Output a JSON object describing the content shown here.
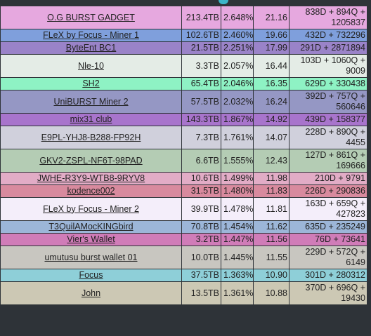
{
  "rows": [
    {
      "name": "O.G BURST GADGET",
      "capacity": "213.4TB",
      "percent": "2.648%",
      "share": "21.16",
      "deadlines": "838D + 894Q + 1205837",
      "bg": "#e6a8df",
      "tall": true
    },
    {
      "name": "FLeX by Focus - Miner 1",
      "capacity": "102.6TB",
      "percent": "2.460%",
      "share": "19.66",
      "deadlines": "432D + 732296",
      "bg": "#7f9fdc",
      "tall": false
    },
    {
      "name": "ByteEnt BC1",
      "capacity": "21.5TB",
      "percent": "2.251%",
      "share": "17.99",
      "deadlines": "291D + 2871894",
      "bg": "#9a83c8",
      "tall": false
    },
    {
      "name": "Nle-10",
      "capacity": "3.3TB",
      "percent": "2.057%",
      "share": "16.44",
      "deadlines": "103D + 1060Q + 9009",
      "bg": "#e4ece6",
      "tall": true
    },
    {
      "name": "SH2",
      "capacity": "65.4TB",
      "percent": "2.046%",
      "share": "16.35",
      "deadlines": "629D + 330438",
      "bg": "#8ef2c4",
      "tall": false
    },
    {
      "name": "UniBURST Miner 2",
      "capacity": "57.5TB",
      "percent": "2.032%",
      "share": "16.24",
      "deadlines": "392D + 757Q + 560646",
      "bg": "#9597c4",
      "tall": true
    },
    {
      "name": "mix31 club",
      "capacity": "143.3TB",
      "percent": "1.867%",
      "share": "14.92",
      "deadlines": "439D + 158377",
      "bg": "#a874cc",
      "tall": false
    },
    {
      "name": "E9PL-YHJ8-B288-FP92H",
      "capacity": "7.3TB",
      "percent": "1.761%",
      "share": "14.07",
      "deadlines": "228D + 890Q + 4455",
      "bg": "#d0d0dc",
      "tall": true
    },
    {
      "name": "GKV2-ZSPL-NF6T-98PAD",
      "capacity": "6.6TB",
      "percent": "1.555%",
      "share": "12.43",
      "deadlines": "127D + 861Q + 169666",
      "bg": "#b4ccb4",
      "tall": true
    },
    {
      "name": "JWHE-R3Y9-WTB8-9RYV8",
      "capacity": "10.6TB",
      "percent": "1.499%",
      "share": "11.98",
      "deadlines": "210D + 9791",
      "bg": "#e2acc6",
      "tall": false
    },
    {
      "name": "kodence002",
      "capacity": "31.5TB",
      "percent": "1.480%",
      "share": "11.83",
      "deadlines": "226D + 290836",
      "bg": "#d88a9e",
      "tall": false
    },
    {
      "name": "FLeX by Focus - Miner 2",
      "capacity": "39.9TB",
      "percent": "1.478%",
      "share": "11.81",
      "deadlines": "163D + 659Q + 427823",
      "bg": "#f4eefa",
      "tall": true
    },
    {
      "name": "T3QuilAMocKINGbird",
      "capacity": "70.8TB",
      "percent": "1.454%",
      "share": "11.62",
      "deadlines": "635D + 235249",
      "bg": "#9cb6d8",
      "tall": false
    },
    {
      "name": "Vier's Wallet",
      "capacity": "3.2TB",
      "percent": "1.447%",
      "share": "11.56",
      "deadlines": "76D + 73641",
      "bg": "#d07cb8",
      "tall": false
    },
    {
      "name": "umutusu burst wallet 01",
      "capacity": "10.0TB",
      "percent": "1.445%",
      "share": "11.55",
      "deadlines": "229D + 572Q + 6149",
      "bg": "#c8c6c0",
      "tall": true
    },
    {
      "name": "Focus",
      "capacity": "37.5TB",
      "percent": "1.363%",
      "share": "10.90",
      "deadlines": "301D + 280312",
      "bg": "#8ecfd8",
      "tall": false
    },
    {
      "name": "John",
      "capacity": "13.5TB",
      "percent": "1.361%",
      "share": "10.88",
      "deadlines": "370D + 696Q + 19430",
      "bg": "#ccc8b4",
      "tall": true
    }
  ]
}
